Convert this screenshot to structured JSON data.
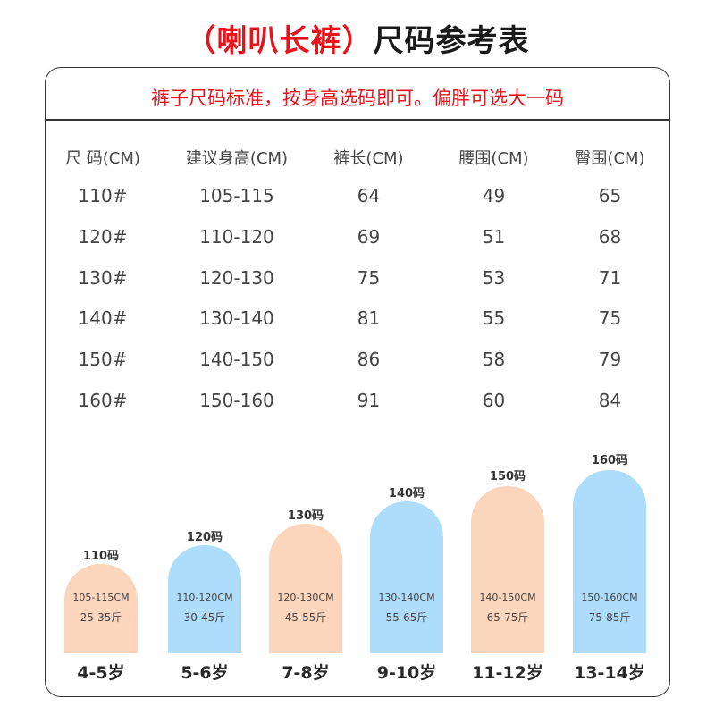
{
  "title": {
    "part1": "（喇叭长裤）",
    "part2": "尺码参考表"
  },
  "notice": "裤子尺码标准，按身高选码即可。偏胖可选大一码",
  "table": {
    "headers": [
      "尺 码(CM)",
      "建议身高(CM)",
      "裤长(CM)",
      "腰围(CM)",
      "臀围(CM)"
    ],
    "rows": [
      [
        "110#",
        "105-115",
        "64",
        "49",
        "65"
      ],
      [
        "120#",
        "110-120",
        "69",
        "51",
        "68"
      ],
      [
        "130#",
        "120-130",
        "75",
        "53",
        "71"
      ],
      [
        "140#",
        "130-140",
        "81",
        "55",
        "75"
      ],
      [
        "150#",
        "140-150",
        "86",
        "58",
        "79"
      ],
      [
        "160#",
        "150-160",
        "91",
        "60",
        "84"
      ]
    ]
  },
  "colors": {
    "red": "#e8141c",
    "peach": "#fcd5bd",
    "blue": "#aedcfb"
  },
  "sizes": [
    {
      "label": "110码",
      "range": "105-115CM",
      "weight": "25-35斤",
      "age": "4-5岁",
      "color": "peach"
    },
    {
      "label": "120码",
      "range": "110-120CM",
      "weight": "30-45斤",
      "age": "5-6岁",
      "color": "blue"
    },
    {
      "label": "130码",
      "range": "120-130CM",
      "weight": "45-55斤",
      "age": "7-8岁",
      "color": "peach"
    },
    {
      "label": "140码",
      "range": "130-140CM",
      "weight": "55-65斤",
      "age": "9-10岁",
      "color": "blue"
    },
    {
      "label": "150码",
      "range": "140-150CM",
      "weight": "65-75斤",
      "age": "11-12岁",
      "color": "peach"
    },
    {
      "label": "160码",
      "range": "150-160CM",
      "weight": "75-85斤",
      "age": "13-14岁",
      "color": "blue"
    }
  ]
}
